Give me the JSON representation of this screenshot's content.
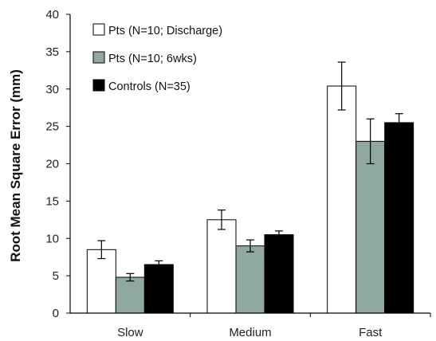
{
  "chart_data": {
    "type": "bar",
    "ylabel": "Root Mean Square Error (mm)",
    "xlabel": "",
    "categories": [
      "Slow",
      "Medium",
      "Fast"
    ],
    "ylim": [
      0,
      40
    ],
    "yticks": [
      0,
      5,
      10,
      15,
      20,
      25,
      30,
      35,
      40
    ],
    "legend_position": "top-left",
    "grid": false,
    "series": [
      {
        "name": "Pts (N=10; Discharge)",
        "color": "#ffffff",
        "values": [
          8.5,
          12.5,
          30.4
        ],
        "errors": [
          1.2,
          1.3,
          3.2
        ]
      },
      {
        "name": "Pts (N=10; 6wks)",
        "color": "#8fa8a2",
        "values": [
          4.8,
          9.0,
          23.0
        ],
        "errors": [
          0.5,
          0.8,
          3.0
        ]
      },
      {
        "name": "Controls (N=35)",
        "color": "#000000",
        "values": [
          6.5,
          10.5,
          25.5
        ],
        "errors": [
          0.5,
          0.5,
          1.2
        ]
      }
    ]
  }
}
